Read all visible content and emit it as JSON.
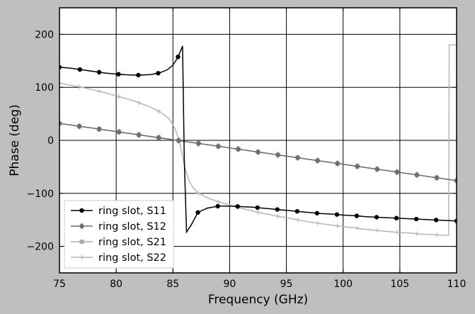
{
  "chart_data": {
    "type": "line",
    "title": "",
    "xlabel": "Frequency (GHz)",
    "ylabel": "Phase (deg)",
    "xlim": [
      75,
      110
    ],
    "ylim": [
      -250,
      250
    ],
    "xticks": [
      75,
      80,
      85,
      90,
      95,
      100,
      105,
      110
    ],
    "yticks": [
      -200,
      -100,
      0,
      100,
      200
    ],
    "grid": true,
    "legend_position": "lower-left",
    "series": [
      {
        "name": "ring slot, S11",
        "color": "#000000",
        "marker": "circle",
        "x": [
          75,
          76,
          77,
          78,
          79,
          80,
          81,
          82,
          83,
          83.8,
          84.5,
          85,
          85.4,
          85.7,
          85.85,
          86.0,
          86.2,
          86.6,
          87.2,
          88,
          89,
          90,
          91,
          92,
          93,
          94,
          95,
          96,
          97,
          98,
          99,
          100,
          101,
          102,
          103,
          104,
          105,
          106,
          107,
          108,
          109,
          110
        ],
        "y": [
          138,
          136,
          133,
          130,
          127,
          125,
          123.5,
          123,
          124,
          127,
          133,
          142,
          155,
          170,
          178,
          -35,
          -173,
          -160,
          -136,
          -128,
          -124,
          -124,
          -125,
          -126,
          -128,
          -130,
          -132,
          -134,
          -136,
          -138,
          -139,
          -141,
          -142,
          -144,
          -145,
          -146,
          -147,
          -148,
          -149,
          -150,
          -151,
          -152
        ],
        "marker_x": [
          75,
          76.8,
          78.5,
          80.2,
          81.95,
          83.7,
          85.45,
          87.2,
          88.95,
          90.7,
          92.45,
          94.2,
          95.95,
          97.7,
          99.45,
          101.2,
          102.95,
          104.7,
          106.45,
          108.2,
          110
        ]
      },
      {
        "name": "ring slot, S12",
        "color": "#6e6e6e",
        "marker": "diamond",
        "x": [
          75,
          110
        ],
        "y": [
          32,
          -76
        ],
        "marker_x": [
          75,
          76.75,
          78.5,
          80.25,
          82,
          83.75,
          85.5,
          87.25,
          89,
          90.75,
          92.5,
          94.25,
          96,
          97.75,
          99.5,
          101.25,
          103,
          104.75,
          106.5,
          108.25,
          110
        ]
      },
      {
        "name": "ring slot, S21",
        "color": "#aaaaaa",
        "marker": "square",
        "x": [
          75,
          110
        ],
        "y": [
          32,
          -76
        ],
        "marker_x": [
          75,
          76.75,
          78.5,
          80.25,
          82,
          83.75,
          85.5,
          87.25,
          89,
          90.75,
          92.5,
          94.25,
          96,
          97.75,
          99.5,
          101.25,
          103,
          104.75,
          106.5,
          108.25,
          110
        ]
      },
      {
        "name": "ring slot, S22",
        "color": "#b5b5b5",
        "marker": "plus",
        "x": [
          75,
          76,
          77,
          78,
          79,
          80,
          81,
          82,
          83,
          84,
          84.6,
          85,
          85.3,
          85.6,
          85.85,
          86.1,
          86.4,
          86.8,
          87.2,
          88,
          89,
          90,
          91,
          92,
          93,
          94,
          95,
          96,
          97,
          98,
          99,
          100,
          101,
          102,
          103,
          104,
          105,
          106,
          107,
          108,
          109,
          109.3,
          109.35,
          110
        ],
        "y": [
          108,
          104,
          100,
          95,
          90,
          84,
          78,
          71,
          63,
          52,
          42,
          30,
          15,
          -5,
          -30,
          -55,
          -75,
          -90,
          -99,
          -108,
          -116,
          -122,
          -128,
          -133,
          -138,
          -142,
          -146,
          -150,
          -154,
          -157,
          -160,
          -163,
          -165,
          -168,
          -170,
          -172,
          -174,
          -175,
          -177,
          -178,
          -179,
          -179,
          180,
          180
        ],
        "marker_x": [
          75,
          76.75,
          78.5,
          80.25,
          82,
          83.75,
          85.5,
          87.25,
          89,
          90.75,
          92.5,
          94.25,
          96,
          97.75,
          99.5,
          101.25,
          103,
          104.75,
          106.5,
          108.25
        ]
      }
    ]
  }
}
